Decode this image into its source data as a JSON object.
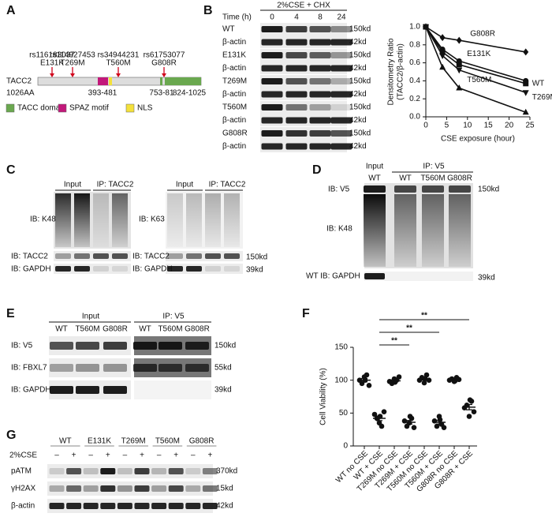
{
  "panel_labels": [
    "A",
    "B",
    "C",
    "D",
    "E",
    "F",
    "G"
  ],
  "panel_a": {
    "snps": [
      {
        "rs": "rs116183037",
        "mutation": "E131K"
      },
      {
        "rs": "rs114927453",
        "mutation": "T269M"
      },
      {
        "rs": "rs34944231",
        "mutation": "T560M"
      },
      {
        "rs": "rs61753077",
        "mutation": "G808R"
      }
    ],
    "protein": "TACC2",
    "length": "1026AA",
    "ranges": [
      "393-481",
      "753-81",
      "824-1025"
    ],
    "legend": [
      {
        "label": "TACC domain",
        "color": "#6aa84f"
      },
      {
        "label": "SPAZ motif",
        "color": "#c2187a"
      },
      {
        "label": "NLS",
        "color": "#f4e13b"
      }
    ]
  },
  "panel_b_blot": {
    "treatment": "2%CSE + CHX",
    "time_label": "Time (h)",
    "times": [
      "0",
      "4",
      "8",
      "24"
    ],
    "rows": [
      {
        "label": "WT",
        "size": "150kd"
      },
      {
        "label": "β-actin",
        "size": "42kd"
      },
      {
        "label": "E131K",
        "size": "150kd"
      },
      {
        "label": "β-actin",
        "size": "42kd"
      },
      {
        "label": "T269M",
        "size": "150kd"
      },
      {
        "label": "β-actin",
        "size": "42kd"
      },
      {
        "label": "T560M",
        "size": "150kd"
      },
      {
        "label": "β-actin",
        "size": "42kd"
      },
      {
        "label": "G808R",
        "size": "150kd"
      },
      {
        "label": "β-actin",
        "size": "42kd"
      }
    ]
  },
  "panel_c": {
    "blots": [
      {
        "input": "Input",
        "ip": "IP: TACC2",
        "ib_top": "IB: K48",
        "ib_mid": "IB: TACC2",
        "ib_bottom": "IB: GAPDH"
      },
      {
        "input": "Input",
        "ip": "IP: TACC2",
        "ib_top": "IB: K63",
        "ib_mid": "IB: TACC2",
        "ib_bottom": "IB: GAPDH"
      }
    ],
    "sizes": [
      "150kd",
      "39kd"
    ]
  },
  "panel_d": {
    "input": "Input",
    "ip": "IP: V5",
    "lanes": [
      "WT",
      "WT",
      "T560M",
      "G808R"
    ],
    "rows": [
      "IB: V5",
      "IB: K48",
      "WT IB: GAPDH"
    ],
    "sizes": [
      "150kd",
      "39kd"
    ]
  },
  "panel_e": {
    "input": "Input",
    "ip": "IP: V5",
    "lanes": [
      "WT",
      "T560M",
      "G808R",
      "WT",
      "T560M",
      "G808R"
    ],
    "rows": [
      {
        "label": "IB: V5",
        "size": "150kd"
      },
      {
        "label": "IB: FBXL7",
        "size": "55kd"
      },
      {
        "label": "IB: GAPDH",
        "size": "39kd"
      }
    ]
  },
  "panel_g": {
    "lanes": [
      "WT",
      "E131K",
      "T269M",
      "T560M",
      "G808R"
    ],
    "treatment": "2%CSE",
    "signs": [
      "–",
      "+",
      "–",
      "+",
      "–",
      "+",
      "–",
      "+",
      "–",
      "+"
    ],
    "rows": [
      {
        "label": "pATM",
        "size": "370kd"
      },
      {
        "label": "γH2AX",
        "size": "15kd"
      },
      {
        "label": "β-actin",
        "size": "42kd"
      }
    ]
  },
  "chart_data": [
    {
      "type": "line",
      "xlabel": "CSE exposure (hour)",
      "ylabel": [
        "Densitometry Ratio",
        "(TACC2/β-actin)"
      ],
      "x": [
        0,
        4,
        8,
        24
      ],
      "xlim": [
        0,
        25
      ],
      "xticks": [
        0,
        5,
        10,
        15,
        20,
        25
      ],
      "ylim": [
        0,
        1
      ],
      "yticks": [
        {
          "value": 0,
          "label": "0.0"
        },
        0.2,
        0.4,
        0.6,
        0.8,
        {
          "value": 1,
          "label": "1.0"
        }
      ],
      "series": [
        {
          "name": "G808R",
          "color": "#111111",
          "marker": "diamond",
          "values": [
            1.0,
            0.88,
            0.85,
            0.72
          ]
        },
        {
          "name": "E131K",
          "color": "#111111",
          "marker": "circle",
          "values": [
            1.0,
            0.75,
            0.62,
            0.4
          ]
        },
        {
          "name": "WT",
          "color": "#111111",
          "marker": "square",
          "values": [
            1.0,
            0.72,
            0.58,
            0.37
          ]
        },
        {
          "name": "T269M",
          "color": "#111111",
          "marker": "triangle-down",
          "values": [
            1.0,
            0.68,
            0.52,
            0.27
          ]
        },
        {
          "name": "T560M",
          "color": "#111111",
          "marker": "triangle",
          "values": [
            1.0,
            0.55,
            0.32,
            0.05
          ]
        }
      ]
    },
    {
      "type": "dot",
      "ylabel": "Cell Viability (%)",
      "categories": [
        "WT no CSE",
        "WT + CSE",
        "T269M no CSE",
        "T269M + CSE",
        "T560M no CSE",
        "T560M + CSE",
        "G808R no CSE",
        "G808R + CSE"
      ],
      "values": [
        [
          100,
          95,
          105,
          108,
          92,
          100
        ],
        [
          48,
          42,
          35,
          30,
          52,
          45
        ],
        [
          98,
          95,
          102,
          100,
          105,
          97
        ],
        [
          38,
          30,
          35,
          42,
          28,
          45
        ],
        [
          100,
          104,
          96,
          108,
          100,
          102
        ],
        [
          38,
          30,
          45,
          33,
          28,
          40
        ],
        [
          100,
          102,
          98,
          104,
          101,
          99
        ],
        [
          58,
          62,
          45,
          68,
          52,
          70
        ]
      ],
      "means": [
        100,
        42,
        99,
        36,
        102,
        36,
        101,
        59
      ],
      "errors": [
        2.5,
        3.5,
        1.5,
        2.7,
        1.8,
        2.7,
        0.8,
        4.0
      ],
      "color": "#111111",
      "ylim": [
        0,
        150
      ],
      "yticks": [
        0,
        50,
        100,
        150
      ],
      "annotations": [
        {
          "label": "**",
          "between": [
            "WT + CSE",
            "T269M + CSE"
          ]
        },
        {
          "label": "**",
          "between": [
            "WT + CSE",
            "T560M + CSE"
          ]
        },
        {
          "label": "**",
          "between": [
            "WT + CSE",
            "G808R + CSE"
          ]
        }
      ]
    }
  ]
}
